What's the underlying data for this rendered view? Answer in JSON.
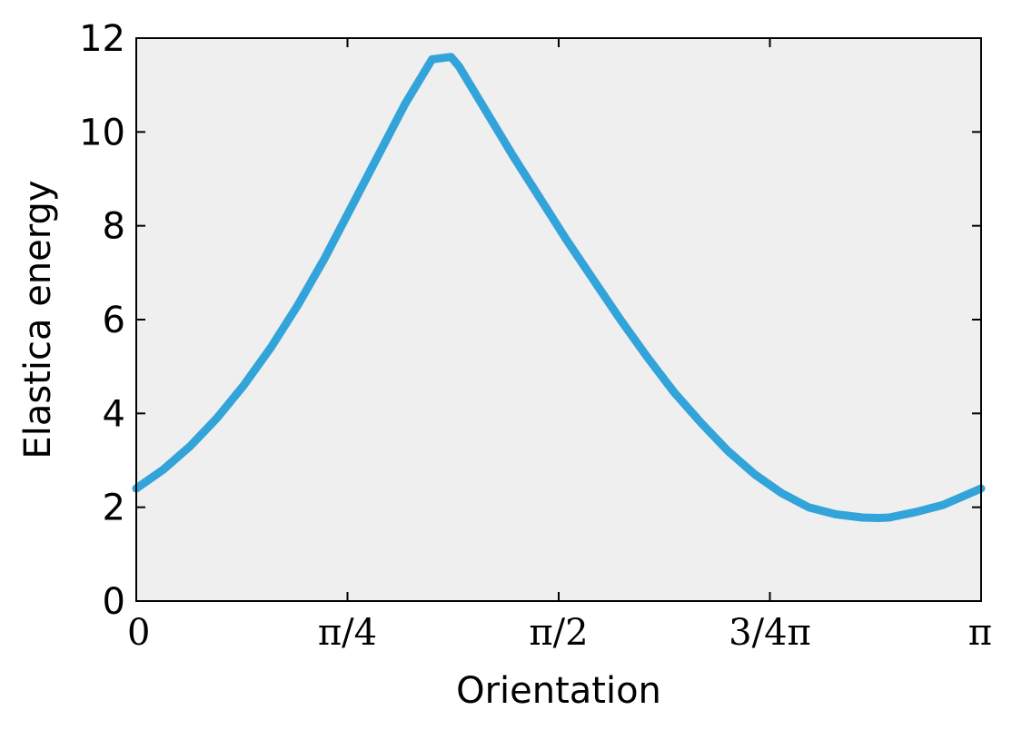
{
  "chart_data": {
    "type": "line",
    "title": "",
    "xlabel": "Orientation",
    "ylabel": "Elastica energy",
    "xlim": [
      0,
      3.14159
    ],
    "ylim": [
      0,
      12
    ],
    "grid": false,
    "background_color": "#efeff0",
    "line_color": "#33a4d9",
    "x_ticks": [
      {
        "value": 0,
        "label": "0"
      },
      {
        "value": 0.7854,
        "label": "π/4"
      },
      {
        "value": 1.5708,
        "label": "π/2"
      },
      {
        "value": 2.3562,
        "label": "3/4π"
      },
      {
        "value": 3.14159,
        "label": "π"
      }
    ],
    "y_ticks": [
      {
        "value": 0,
        "label": "0"
      },
      {
        "value": 2,
        "label": "2"
      },
      {
        "value": 4,
        "label": "4"
      },
      {
        "value": 6,
        "label": "6"
      },
      {
        "value": 8,
        "label": "8"
      },
      {
        "value": 10,
        "label": "10"
      },
      {
        "value": 12,
        "label": "12"
      }
    ],
    "series": [
      {
        "x": [
          0,
          0.1,
          0.2,
          0.3,
          0.4,
          0.5,
          0.6,
          0.7,
          0.8,
          0.9,
          1.0,
          1.1,
          1.17,
          1.2,
          1.3,
          1.4,
          1.5,
          1.6,
          1.7,
          1.8,
          1.9,
          2.0,
          2.1,
          2.2,
          2.3,
          2.4,
          2.5,
          2.6,
          2.7,
          2.76,
          2.8,
          2.9,
          3.0,
          3.14159
        ],
        "y": [
          2.4,
          2.8,
          3.3,
          3.9,
          4.6,
          5.4,
          6.3,
          7.3,
          8.4,
          9.5,
          10.6,
          11.55,
          11.6,
          11.4,
          10.45,
          9.5,
          8.6,
          7.7,
          6.85,
          6.0,
          5.2,
          4.45,
          3.8,
          3.2,
          2.7,
          2.3,
          2.0,
          1.85,
          1.78,
          1.77,
          1.78,
          1.9,
          2.05,
          2.4
        ]
      }
    ]
  }
}
